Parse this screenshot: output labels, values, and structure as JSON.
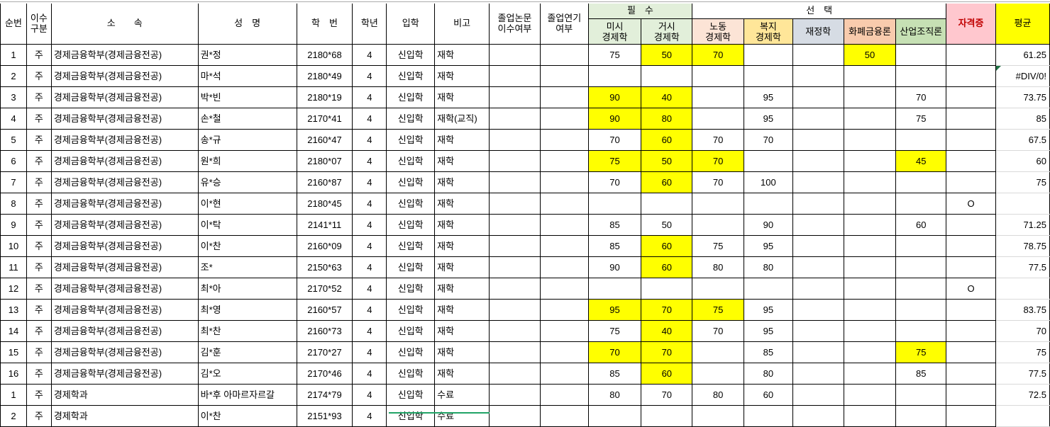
{
  "table": {
    "headers": {
      "sunbeon": "순번",
      "isu": "이수\n구분",
      "sosok": "소　　속",
      "seongmyeong": "성　명",
      "hakbeon": "학　번",
      "haknyeon": "학년",
      "iphak": "입학",
      "bigo": "비고",
      "nonmun": "졸업논문\n이수여부",
      "yeongi": "졸업연기\n여부",
      "pilsu": "필　수",
      "seontaek": "선　택",
      "misi": "미시\n경제학",
      "geosi": "거시\n경제학",
      "nodong": "노동\n경제학",
      "bokji": "복지\n경제학",
      "jaejeong": "재정학",
      "hwapye": "화폐금융론",
      "saneop": "산업조직론",
      "jagyeok": "자격증",
      "avg": "평균"
    },
    "colors": {
      "highlight_yellow": "#FFFF00",
      "required_green": "#E2EFDA",
      "labor_pink": "#FCE4D6",
      "welfare_gold": "#FFE699",
      "finance_gray": "#D6DCE4",
      "money_orange": "#F8CBAD",
      "industry_green": "#C6E0B4",
      "cert_pink": "#FFC7CE",
      "cert_text_red": "#C00000",
      "avg_yellow": "#FFFF00",
      "error_triangle_green": "#217346",
      "bottom_strip_green": "#21A366",
      "grid_gray": "#D9D9D9"
    },
    "rows": [
      {
        "cells": [
          "1",
          "주",
          "경제금융학부(경제금융전공)",
          "권*정",
          "2180*68",
          "4",
          "신입학",
          "재학",
          "",
          "",
          "75",
          "50",
          "70",
          "",
          "",
          "50",
          "",
          "",
          "61.25"
        ],
        "yellow": [
          11,
          12,
          15
        ],
        "triangle": false
      },
      {
        "cells": [
          "2",
          "주",
          "경제금융학부(경제금융전공)",
          "마*석",
          "2180*49",
          "4",
          "신입학",
          "재학",
          "",
          "",
          "",
          "",
          "",
          "",
          "",
          "",
          "",
          "",
          "#DIV/0!"
        ],
        "yellow": [],
        "triangle": true
      },
      {
        "cells": [
          "3",
          "주",
          "경제금융학부(경제금융전공)",
          "박*빈",
          "2180*19",
          "4",
          "신입학",
          "재학",
          "",
          "",
          "90",
          "40",
          "",
          "95",
          "",
          "",
          "70",
          "",
          "73.75"
        ],
        "yellow": [
          10,
          11
        ],
        "triangle": false
      },
      {
        "cells": [
          "4",
          "주",
          "경제금융학부(경제금융전공)",
          "손*철",
          "2170*41",
          "4",
          "신입학",
          "재학(교직)",
          "",
          "",
          "90",
          "80",
          "",
          "95",
          "",
          "",
          "75",
          "",
          "85"
        ],
        "yellow": [
          10,
          11
        ],
        "triangle": false
      },
      {
        "cells": [
          "5",
          "주",
          "경제금융학부(경제금융전공)",
          "송*규",
          "2160*47",
          "4",
          "신입학",
          "재학",
          "",
          "",
          "70",
          "60",
          "70",
          "70",
          "",
          "",
          "",
          "",
          "67.5"
        ],
        "yellow": [
          11
        ],
        "triangle": false
      },
      {
        "cells": [
          "6",
          "주",
          "경제금융학부(경제금융전공)",
          "원*희",
          "2180*07",
          "4",
          "신입학",
          "재학",
          "",
          "",
          "75",
          "50",
          "70",
          "",
          "",
          "",
          "45",
          "",
          "60"
        ],
        "yellow": [
          10,
          11,
          12,
          16
        ],
        "triangle": false
      },
      {
        "cells": [
          "7",
          "주",
          "경제금융학부(경제금융전공)",
          "유*승",
          "2160*87",
          "4",
          "신입학",
          "재학",
          "",
          "",
          "70",
          "60",
          "70",
          "100",
          "",
          "",
          "",
          "",
          "75"
        ],
        "yellow": [
          11
        ],
        "triangle": false
      },
      {
        "cells": [
          "8",
          "주",
          "경제금융학부(경제금융전공)",
          "이*현",
          "2180*45",
          "4",
          "신입학",
          "재학",
          "",
          "",
          "",
          "",
          "",
          "",
          "",
          "",
          "",
          "O",
          ""
        ],
        "yellow": [],
        "triangle": false
      },
      {
        "cells": [
          "9",
          "주",
          "경제금융학부(경제금융전공)",
          "이*탁",
          "2141*11",
          "4",
          "신입학",
          "재학",
          "",
          "",
          "85",
          "50",
          "",
          "90",
          "",
          "",
          "60",
          "",
          "71.25"
        ],
        "yellow": [],
        "triangle": false
      },
      {
        "cells": [
          "10",
          "주",
          "경제금융학부(경제금융전공)",
          "이*찬",
          "2160*09",
          "4",
          "신입학",
          "재학",
          "",
          "",
          "85",
          "60",
          "75",
          "95",
          "",
          "",
          "",
          "",
          "78.75"
        ],
        "yellow": [
          11
        ],
        "triangle": false
      },
      {
        "cells": [
          "11",
          "주",
          "경제금융학부(경제금융전공)",
          "조*",
          "2150*63",
          "4",
          "신입학",
          "재학",
          "",
          "",
          "90",
          "60",
          "80",
          "80",
          "",
          "",
          "",
          "",
          "77.5"
        ],
        "yellow": [
          11
        ],
        "triangle": false
      },
      {
        "cells": [
          "12",
          "주",
          "경제금융학부(경제금융전공)",
          "최*아",
          "2170*52",
          "4",
          "신입학",
          "재학",
          "",
          "",
          "",
          "",
          "",
          "",
          "",
          "",
          "",
          "O",
          ""
        ],
        "yellow": [],
        "triangle": false
      },
      {
        "cells": [
          "13",
          "주",
          "경제금융학부(경제금융전공)",
          "최*영",
          "2160*57",
          "4",
          "신입학",
          "재학",
          "",
          "",
          "95",
          "70",
          "75",
          "95",
          "",
          "",
          "",
          "",
          "83.75"
        ],
        "yellow": [
          10,
          11,
          12
        ],
        "triangle": false
      },
      {
        "cells": [
          "14",
          "주",
          "경제금융학부(경제금융전공)",
          "최*찬",
          "2160*73",
          "4",
          "신입학",
          "재학",
          "",
          "",
          "75",
          "40",
          "70",
          "95",
          "",
          "",
          "",
          "",
          "70"
        ],
        "yellow": [
          11
        ],
        "triangle": false
      },
      {
        "cells": [
          "15",
          "주",
          "경제금융학부(경제금융전공)",
          "김*훈",
          "2170*27",
          "4",
          "신입학",
          "재학",
          "",
          "",
          "70",
          "70",
          "",
          "85",
          "",
          "",
          "75",
          "",
          "75"
        ],
        "yellow": [
          10,
          11,
          16
        ],
        "triangle": false
      },
      {
        "cells": [
          "16",
          "주",
          "경제금융학부(경제금융전공)",
          "김*오",
          "2170*46",
          "4",
          "신입학",
          "재학",
          "",
          "",
          "85",
          "60",
          "",
          "80",
          "",
          "",
          "85",
          "",
          "77.5"
        ],
        "yellow": [
          11
        ],
        "triangle": false
      },
      {
        "cells": [
          "1",
          "주",
          "경제학과",
          "바*후 아마르자르갈",
          "2174*79",
          "4",
          "신입학",
          "수료",
          "",
          "",
          "80",
          "70",
          "80",
          "60",
          "",
          "",
          "",
          "",
          "72.5"
        ],
        "yellow": [],
        "triangle": false
      },
      {
        "cells": [
          "2",
          "주",
          "경제학과",
          "이*찬",
          "2151*93",
          "4",
          "신입학",
          "수료",
          "",
          "",
          "",
          "",
          "",
          "",
          "",
          "",
          "",
          "",
          ""
        ],
        "yellow": [],
        "triangle": false
      }
    ]
  }
}
